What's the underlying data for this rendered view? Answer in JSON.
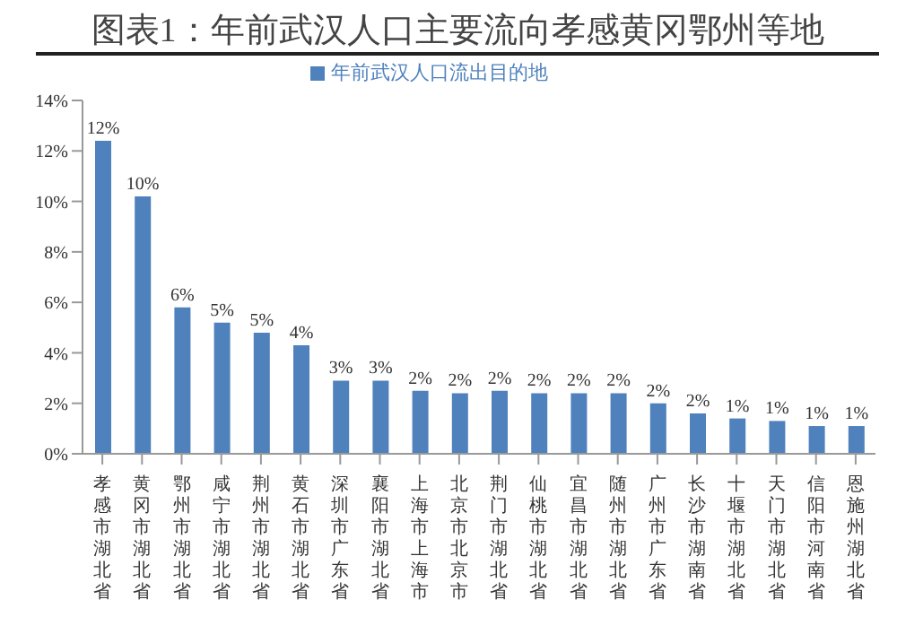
{
  "chart_data": {
    "type": "bar",
    "title": "图表1：年前武汉人口主要流向孝感黄冈鄂州等地",
    "categories": [
      "孝感市湖北省",
      "黄冈市湖北省",
      "鄂州市湖北省",
      "咸宁市湖北省",
      "荆州市湖北省",
      "黄石市湖北省",
      "深圳市广东省",
      "襄阳市湖北省",
      "上海市上海市",
      "北京市北京市",
      "荆门市湖北省",
      "仙桃市湖北省",
      "宜昌市湖北省",
      "随州市湖北省",
      "广州市广东省",
      "长沙市湖南省",
      "十堰市湖北省",
      "天门市湖北省",
      "信阳市河南省",
      "恩施州湖北省"
    ],
    "series": [
      {
        "name": "年前武汉人口流出目的地",
        "color": "#4f81bd",
        "values": [
          12.4,
          10.2,
          5.8,
          5.2,
          4.8,
          4.3,
          2.9,
          2.9,
          2.5,
          2.4,
          2.5,
          2.4,
          2.4,
          2.4,
          2.0,
          1.6,
          1.4,
          1.3,
          1.1,
          1.1
        ],
        "value_labels": [
          "12%",
          "10%",
          "6%",
          "5%",
          "5%",
          "4%",
          "3%",
          "3%",
          "2%",
          "2%",
          "2%",
          "2%",
          "2%",
          "2%",
          "2%",
          "2%",
          "1%",
          "1%",
          "1%",
          "1%"
        ]
      }
    ],
    "ylim": [
      0,
      14
    ],
    "yticks": [
      {
        "value": 0,
        "label": "0%"
      },
      {
        "value": 2,
        "label": "2%"
      },
      {
        "value": 4,
        "label": "4%"
      },
      {
        "value": 6,
        "label": "6%"
      },
      {
        "value": 8,
        "label": "8%"
      },
      {
        "value": 10,
        "label": "10%"
      },
      {
        "value": 12,
        "label": "12%"
      },
      {
        "value": 14,
        "label": "14%"
      }
    ],
    "legend": "top",
    "grid": false
  }
}
